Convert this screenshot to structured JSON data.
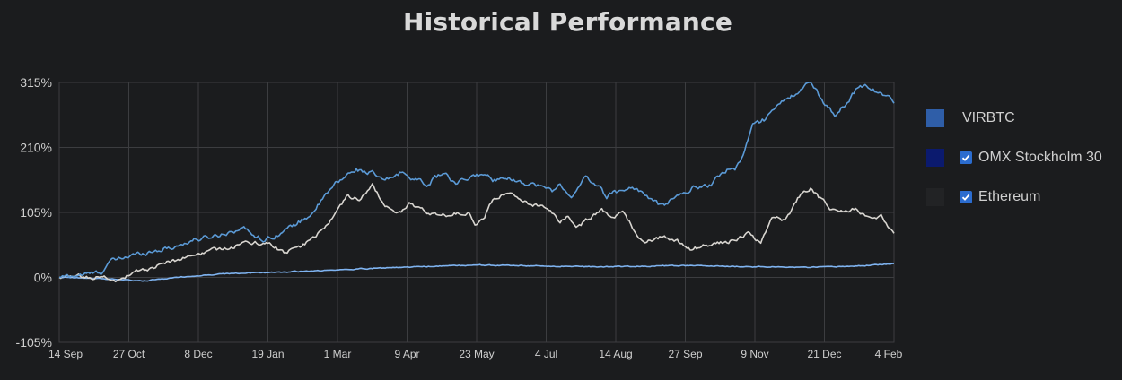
{
  "title": "Historical Performance",
  "colors": {
    "background": "#1b1c1e",
    "grid": "#3c3d40",
    "virbtc": "#5b9ad6",
    "omx": "#7fb3f0",
    "ethereum": "#d8d5d0",
    "swatch_virbtc": "#2f5ea8",
    "swatch_omx": "#0b1a6e",
    "swatch_ethereum": "#222325"
  },
  "legend": [
    {
      "name": "VIRBTC",
      "checkbox": false,
      "swatch": "#2f5ea8"
    },
    {
      "name": "OMX Stockholm 30",
      "checkbox": true,
      "checked": true,
      "swatch": "#0b1a6e"
    },
    {
      "name": "Ethereum",
      "checkbox": true,
      "checked": true,
      "swatch": "#222325"
    }
  ],
  "chart_data": {
    "type": "line",
    "title": "Historical Performance",
    "ylim": [
      -105,
      315
    ],
    "yticks": [
      -105,
      0,
      105,
      210,
      315
    ],
    "ytick_labels": [
      "-105%",
      "0%",
      "105%",
      "210%",
      "315%"
    ],
    "xtick_labels": [
      "14 Sep",
      "27 Oct",
      "8 Dec",
      "19 Jan",
      "1 Mar",
      "9 Apr",
      "23 May",
      "4 Jul",
      "14 Aug",
      "27 Sep",
      "9 Nov",
      "21 Dec",
      "4 Feb"
    ],
    "x": [
      "14 Sep",
      "27 Oct",
      "8 Dec",
      "19 Jan",
      "1 Mar",
      "9 Apr",
      "23 May",
      "4 Jul",
      "14 Aug",
      "27 Sep",
      "9 Nov",
      "21 Dec",
      "4 Feb"
    ],
    "grid": true,
    "legend_position": "right",
    "series": [
      {
        "name": "VIRBTC",
        "color": "#5b9ad6",
        "anchors": [
          [
            0,
            0
          ],
          [
            0.03,
            5
          ],
          [
            0.05,
            8
          ],
          [
            0.06,
            25
          ],
          [
            0.085,
            35
          ],
          [
            0.11,
            42
          ],
          [
            0.14,
            50
          ],
          [
            0.16,
            60
          ],
          [
            0.19,
            68
          ],
          [
            0.22,
            80
          ],
          [
            0.245,
            60
          ],
          [
            0.27,
            75
          ],
          [
            0.3,
            100
          ],
          [
            0.33,
            150
          ],
          [
            0.355,
            175
          ],
          [
            0.375,
            168
          ],
          [
            0.39,
            155
          ],
          [
            0.41,
            170
          ],
          [
            0.425,
            160
          ],
          [
            0.44,
            150
          ],
          [
            0.46,
            170
          ],
          [
            0.475,
            150
          ],
          [
            0.49,
            160
          ],
          [
            0.51,
            168
          ],
          [
            0.52,
            155
          ],
          [
            0.53,
            165
          ],
          [
            0.55,
            155
          ],
          [
            0.57,
            150
          ],
          [
            0.59,
            140
          ],
          [
            0.6,
            150
          ],
          [
            0.615,
            130
          ],
          [
            0.63,
            160
          ],
          [
            0.645,
            150
          ],
          [
            0.655,
            130
          ],
          [
            0.67,
            140
          ],
          [
            0.69,
            145
          ],
          [
            0.7,
            135
          ],
          [
            0.72,
            115
          ],
          [
            0.74,
            130
          ],
          [
            0.76,
            145
          ],
          [
            0.78,
            150
          ],
          [
            0.8,
            175
          ],
          [
            0.81,
            175
          ],
          [
            0.82,
            200
          ],
          [
            0.83,
            245
          ],
          [
            0.845,
            255
          ],
          [
            0.855,
            275
          ],
          [
            0.87,
            285
          ],
          [
            0.885,
            300
          ],
          [
            0.9,
            315
          ],
          [
            0.915,
            285
          ],
          [
            0.93,
            262
          ],
          [
            0.945,
            285
          ],
          [
            0.955,
            305
          ],
          [
            0.965,
            310
          ],
          [
            0.975,
            305
          ],
          [
            0.985,
            295
          ],
          [
            1,
            285
          ]
        ]
      },
      {
        "name": "OMX Stockholm 30",
        "color": "#7fb3f0",
        "anchors": [
          [
            0,
            0
          ],
          [
            0.07,
            -3
          ],
          [
            0.1,
            -6
          ],
          [
            0.14,
            0
          ],
          [
            0.2,
            6
          ],
          [
            0.3,
            10
          ],
          [
            0.38,
            15
          ],
          [
            0.45,
            18
          ],
          [
            0.5,
            20
          ],
          [
            0.55,
            19
          ],
          [
            0.6,
            18
          ],
          [
            0.65,
            17
          ],
          [
            0.7,
            18
          ],
          [
            0.75,
            19
          ],
          [
            0.8,
            18
          ],
          [
            0.85,
            17
          ],
          [
            0.9,
            16
          ],
          [
            0.95,
            18
          ],
          [
            1,
            22
          ]
        ]
      },
      {
        "name": "Ethereum",
        "color": "#d8d5d0",
        "anchors": [
          [
            0,
            0
          ],
          [
            0.02,
            2
          ],
          [
            0.05,
            0
          ],
          [
            0.07,
            -5
          ],
          [
            0.09,
            10
          ],
          [
            0.11,
            15
          ],
          [
            0.13,
            25
          ],
          [
            0.16,
            35
          ],
          [
            0.19,
            45
          ],
          [
            0.22,
            55
          ],
          [
            0.25,
            55
          ],
          [
            0.27,
            40
          ],
          [
            0.29,
            50
          ],
          [
            0.31,
            70
          ],
          [
            0.33,
            100
          ],
          [
            0.345,
            130
          ],
          [
            0.36,
            125
          ],
          [
            0.375,
            150
          ],
          [
            0.39,
            115
          ],
          [
            0.405,
            100
          ],
          [
            0.42,
            120
          ],
          [
            0.44,
            105
          ],
          [
            0.46,
            100
          ],
          [
            0.49,
            105
          ],
          [
            0.5,
            85
          ],
          [
            0.51,
            100
          ],
          [
            0.52,
            130
          ],
          [
            0.54,
            135
          ],
          [
            0.56,
            120
          ],
          [
            0.58,
            115
          ],
          [
            0.6,
            90
          ],
          [
            0.61,
            100
          ],
          [
            0.62,
            80
          ],
          [
            0.635,
            95
          ],
          [
            0.65,
            110
          ],
          [
            0.66,
            95
          ],
          [
            0.675,
            105
          ],
          [
            0.69,
            75
          ],
          [
            0.7,
            55
          ],
          [
            0.72,
            65
          ],
          [
            0.74,
            60
          ],
          [
            0.755,
            45
          ],
          [
            0.77,
            50
          ],
          [
            0.79,
            55
          ],
          [
            0.81,
            60
          ],
          [
            0.825,
            70
          ],
          [
            0.84,
            55
          ],
          [
            0.855,
            100
          ],
          [
            0.87,
            90
          ],
          [
            0.885,
            130
          ],
          [
            0.9,
            145
          ],
          [
            0.91,
            130
          ],
          [
            0.925,
            110
          ],
          [
            0.94,
            105
          ],
          [
            0.955,
            110
          ],
          [
            0.97,
            95
          ],
          [
            0.985,
            100
          ],
          [
            1,
            70
          ]
        ]
      }
    ]
  }
}
